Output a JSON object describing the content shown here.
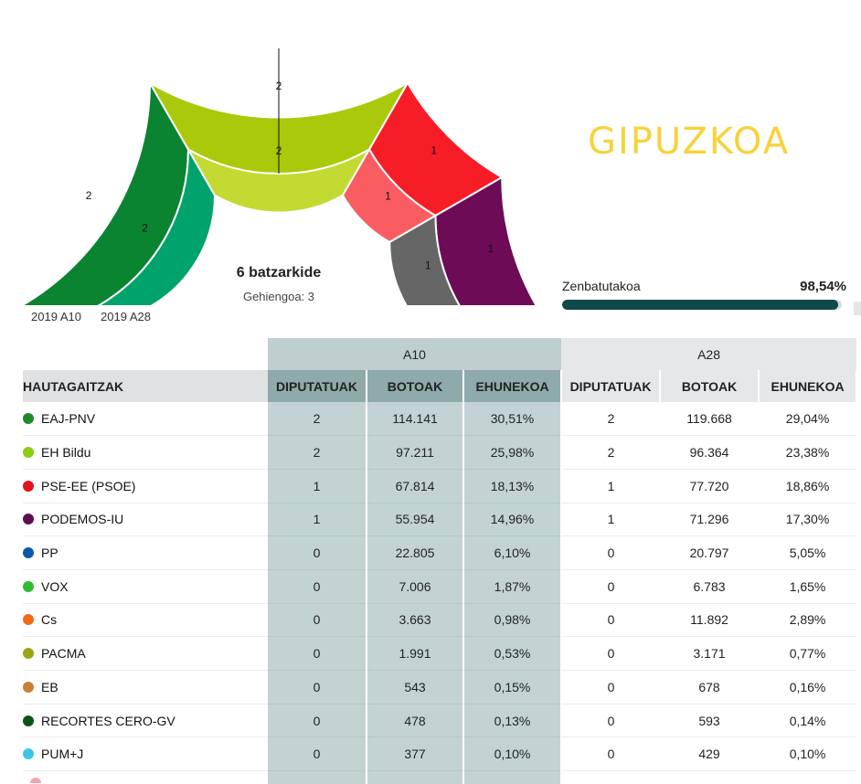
{
  "chart_data": {
    "type": "pie",
    "title": "6 batzarkide",
    "subtitle": "Gehiengoa: 3",
    "rings": [
      {
        "name": "2019 A10",
        "slices": [
          {
            "party": "EAJ-PNV",
            "seats": 2,
            "color": "#0b8432"
          },
          {
            "party": "EH Bildu",
            "seats": 2,
            "color": "#a9c90a"
          },
          {
            "party": "PSE-EE (PSOE)",
            "seats": 1,
            "color": "#f71d27"
          },
          {
            "party": "PODEMOS-IU",
            "seats": 1,
            "color": "#6d0b57"
          }
        ]
      },
      {
        "name": "2019 A28",
        "slices": [
          {
            "party": "EAJ-PNV",
            "seats": 2,
            "color": "#00a36c"
          },
          {
            "party": "EH Bildu",
            "seats": 2,
            "color": "#c4da32"
          },
          {
            "party": "PSE-EE (PSOE)",
            "seats": 1,
            "color": "#fa5d61"
          },
          {
            "party": "PODEMOS-IU",
            "seats": 1,
            "color": "#666666"
          }
        ]
      }
    ]
  },
  "region": "GIPUZKOA",
  "counted": {
    "label": "Zenbatutakoa",
    "value_text": "98,54%",
    "percent": 98.54
  },
  "table": {
    "group_a10": "A10",
    "group_a28": "A28",
    "headers": {
      "name": "HAUTAGAITZAK",
      "a10_seats": "DIPUTATUAK",
      "a10_votes": "BOTOAK",
      "a10_pct": "EHUNEKOA",
      "a28_seats": "DIPUTATUAK",
      "a28_votes": "BOTOAK",
      "a28_pct": "EHUNEKOA"
    },
    "rows": [
      {
        "name": "EAJ-PNV",
        "color": "#1d8a2b",
        "a10": [
          "2",
          "114.141",
          "30,51%"
        ],
        "a28": [
          "2",
          "119.668",
          "29,04%"
        ]
      },
      {
        "name": "EH Bildu",
        "color": "#8ccf12",
        "a10": [
          "2",
          "97.211",
          "25,98%"
        ],
        "a28": [
          "2",
          "96.364",
          "23,38%"
        ]
      },
      {
        "name": "PSE-EE (PSOE)",
        "color": "#e3121e",
        "a10": [
          "1",
          "67.814",
          "18,13%"
        ],
        "a28": [
          "1",
          "77.720",
          "18,86%"
        ]
      },
      {
        "name": "PODEMOS-IU",
        "color": "#5c0f4c",
        "a10": [
          "1",
          "55.954",
          "14,96%"
        ],
        "a28": [
          "1",
          "71.296",
          "17,30%"
        ]
      },
      {
        "name": "PP",
        "color": "#0d58a8",
        "a10": [
          "0",
          "22.805",
          "6,10%"
        ],
        "a28": [
          "0",
          "20.797",
          "5,05%"
        ]
      },
      {
        "name": "VOX",
        "color": "#2fbd2f",
        "a10": [
          "0",
          "7.006",
          "1,87%"
        ],
        "a28": [
          "0",
          "6.783",
          "1,65%"
        ]
      },
      {
        "name": "Cs",
        "color": "#f46a14",
        "a10": [
          "0",
          "3.663",
          "0,98%"
        ],
        "a28": [
          "0",
          "11.892",
          "2,89%"
        ]
      },
      {
        "name": "PACMA",
        "color": "#9ba515",
        "a10": [
          "0",
          "1.991",
          "0,53%"
        ],
        "a28": [
          "0",
          "3.171",
          "0,77%"
        ]
      },
      {
        "name": "EB",
        "color": "#c98137",
        "a10": [
          "0",
          "543",
          "0,15%"
        ],
        "a28": [
          "0",
          "678",
          "0,16%"
        ]
      },
      {
        "name": "RECORTES CERO-GV",
        "color": "#0e5214",
        "a10": [
          "0",
          "478",
          "0,13%"
        ],
        "a28": [
          "0",
          "593",
          "0,14%"
        ]
      },
      {
        "name": "PUM+J",
        "color": "#3ec4ea",
        "a10": [
          "0",
          "377",
          "0,10%"
        ],
        "a28": [
          "0",
          "429",
          "0,10%"
        ]
      }
    ]
  }
}
